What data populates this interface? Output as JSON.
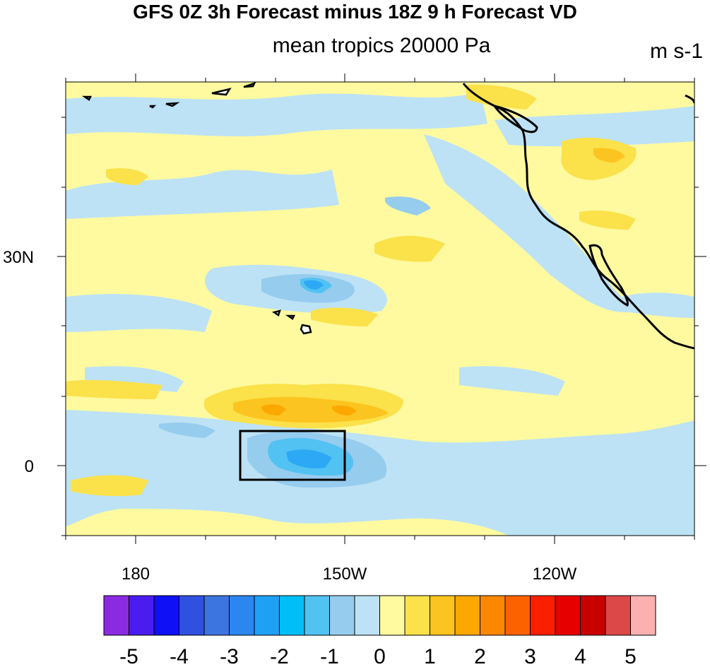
{
  "title": "GFS 0Z 3h Forecast minus 18Z 9 h Forecast VD",
  "subtitle": "mean tropics 20000 Pa",
  "units": "m s-1",
  "lat_labels": [
    "30N",
    "0"
  ],
  "lon_labels": [
    "180",
    "150W",
    "120W"
  ],
  "colorbar": {
    "colors": [
      "#8a2be2",
      "#4b1cf0",
      "#0f10f5",
      "#3050e0",
      "#3c74e0",
      "#2c86f2",
      "#1ea0f5",
      "#00bff8",
      "#52c2f2",
      "#96ccee",
      "#bde2f5",
      "#fffaa0",
      "#fbe14a",
      "#fcc420",
      "#fca800",
      "#fc8700",
      "#fc6300",
      "#fc1e00",
      "#e60000",
      "#c80000",
      "#dc4848",
      "#fcb0b0"
    ],
    "labels": [
      "-5",
      "-4",
      "-3",
      "-2",
      "-1",
      "0",
      "1",
      "2",
      "3",
      "4",
      "5"
    ]
  }
}
